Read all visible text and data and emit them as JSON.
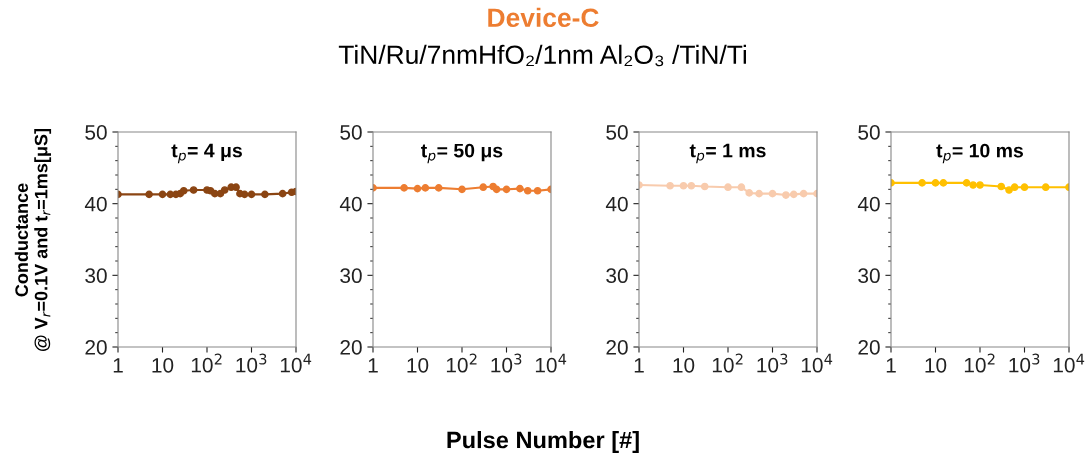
{
  "chart_data": [
    {
      "type": "other",
      "title": "Device-C",
      "subtitle": "TiN/Ru/7nmHfO₂/1nm Al₂O₃ /TiN/Ti"
    },
    {
      "type": "line",
      "xlabel": "Pulse Number [#]",
      "ylabel": "Conductance\n@ V$_{r}$=0.1V and t$_{r}$=1ms[μS]",
      "annotations": [
        "t$_{p}$= 4 μs"
      ],
      "log": "x",
      "marker": "circle",
      "line_style": "solid",
      "grid": false,
      "legend": false,
      "xlim": [
        1,
        10000
      ],
      "xticks": [
        1,
        10,
        {
          "value": 100,
          "label": "10$^{2}$"
        },
        {
          "value": 1000,
          "label": "10$^{3}$"
        },
        {
          "value": 10000,
          "label": "10$^{4}$"
        }
      ],
      "ylim": [
        20,
        50
      ],
      "yticks": [
        20,
        30,
        40,
        50
      ],
      "series": [
        {
          "color": "#8b4513",
          "x": [
            1,
            5,
            10,
            15,
            20,
            25,
            30,
            50,
            100,
            120,
            150,
            200,
            250,
            350,
            450,
            550,
            700,
            1000,
            2000,
            5000,
            8000,
            10000
          ],
          "values": [
            41.3,
            41.3,
            41.3,
            41.3,
            41.3,
            41.4,
            41.8,
            41.9,
            41.9,
            41.8,
            41.4,
            41.4,
            41.9,
            42.3,
            42.3,
            41.4,
            41.3,
            41.3,
            41.3,
            41.4,
            41.6,
            41.7
          ]
        }
      ]
    },
    {
      "type": "line",
      "annotations": [
        "t$_{p}$= 50 μs"
      ],
      "log": "x",
      "marker": "circle",
      "line_style": "solid",
      "grid": false,
      "legend": false,
      "xlim": [
        1,
        10000
      ],
      "xticks": [
        1,
        10,
        {
          "value": 100,
          "label": "10$^{2}$"
        },
        {
          "value": 1000,
          "label": "10$^{3}$"
        },
        {
          "value": 10000,
          "label": "10$^{4}$"
        }
      ],
      "ylim": [
        20,
        50
      ],
      "yticks": [
        20,
        30,
        40,
        50
      ],
      "series": [
        {
          "color": "#ed7d31",
          "x": [
            1,
            5,
            10,
            15,
            30,
            100,
            300,
            500,
            600,
            1000,
            2000,
            3000,
            5000,
            10000
          ],
          "values": [
            42.2,
            42.2,
            42.1,
            42.2,
            42.2,
            42.0,
            42.3,
            42.4,
            42.0,
            42.0,
            42.1,
            41.8,
            41.8,
            42.0
          ]
        }
      ]
    },
    {
      "type": "line",
      "annotations": [
        "t$_{p}$= 1 ms"
      ],
      "log": "x",
      "marker": "circle",
      "line_style": "solid",
      "grid": false,
      "legend": false,
      "xlim": [
        1,
        10000
      ],
      "xticks": [
        1,
        10,
        {
          "value": 100,
          "label": "10$^{2}$"
        },
        {
          "value": 1000,
          "label": "10$^{3}$"
        },
        {
          "value": 10000,
          "label": "10$^{4}$"
        }
      ],
      "ylim": [
        20,
        50
      ],
      "yticks": [
        20,
        30,
        40,
        50
      ],
      "series": [
        {
          "color": "#f8cbad",
          "x": [
            1,
            5,
            10,
            15,
            30,
            100,
            200,
            300,
            500,
            1000,
            2000,
            3000,
            5000,
            10000
          ],
          "values": [
            42.6,
            42.5,
            42.5,
            42.5,
            42.4,
            42.3,
            42.3,
            41.5,
            41.4,
            41.4,
            41.2,
            41.3,
            41.4,
            41.4
          ]
        }
      ]
    },
    {
      "type": "line",
      "annotations": [
        "t$_{p}$= 10 ms"
      ],
      "log": "x",
      "marker": "circle",
      "line_style": "solid",
      "grid": false,
      "legend": false,
      "xlim": [
        1,
        10000
      ],
      "xticks": [
        1,
        10,
        {
          "value": 100,
          "label": "10$^{2}$"
        },
        {
          "value": 1000,
          "label": "10$^{3}$"
        },
        {
          "value": 10000,
          "label": "10$^{4}$"
        }
      ],
      "ylim": [
        20,
        50
      ],
      "yticks": [
        20,
        30,
        40,
        50
      ],
      "series": [
        {
          "color": "#ffc000",
          "x": [
            1,
            5,
            10,
            15,
            50,
            70,
            100,
            300,
            450,
            600,
            1000,
            3000,
            10000
          ],
          "values": [
            42.9,
            42.9,
            42.9,
            42.9,
            42.9,
            42.6,
            42.6,
            42.4,
            41.9,
            42.3,
            42.3,
            42.3,
            42.3
          ]
        }
      ]
    }
  ]
}
